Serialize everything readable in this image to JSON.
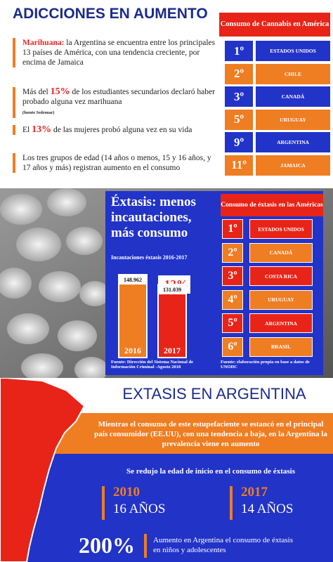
{
  "cannabis": {
    "title": "ADICCIONES EN AUMENTO",
    "paragraphs": [
      [
        {
          "text": "Marihuana:",
          "em": true
        },
        {
          "text": " la Argentina se encuentra entre los principales 13 países de América, con una tendencia creciente, por encima de Jamaica"
        }
      ],
      [
        {
          "text": "Más del "
        },
        {
          "text": "15%",
          "em": true
        },
        {
          "text": " de los estudiantes secundarios declaró haber probado alguna vez marihuana"
        }
      ],
      [
        {
          "text": "El "
        },
        {
          "text": "13%",
          "em": true
        },
        {
          "text": " de las mujeres probó alguna vez en su vida"
        }
      ],
      [
        {
          "text": "Los tres grupos de edad (14 años o menos, 15 y 16 años, y 17 años y más) registran aumento en el consumo"
        }
      ]
    ],
    "note": "(fuente Sedronar)",
    "ranking": {
      "header": "Consumo de Cannabis en América",
      "rows": [
        {
          "rank": "1º",
          "country": "ESTADOS UNIDOS"
        },
        {
          "rank": "2º",
          "country": "CHILE"
        },
        {
          "rank": "3º",
          "country": "CANADÁ"
        },
        {
          "rank": "5º",
          "country": "URUGUAY"
        },
        {
          "rank": "9º",
          "country": "ARGENTINA"
        },
        {
          "rank": "11º",
          "country": "JAMAICA"
        }
      ]
    }
  },
  "ecstasy": {
    "title": "Éxtasis: menos incautaciones, más consumo",
    "seizures": {
      "title": "Incautaciones éxtasis 2016-2017",
      "bars": [
        {
          "year": "2016",
          "value": 148962,
          "value_label": "148.962"
        },
        {
          "year": "2017",
          "value": 131039,
          "value_label": "131.039"
        }
      ],
      "change": "-12%",
      "source": "Fuente: Dirección del Sistema Nacional de Información Criminal -Agosto 2018"
    },
    "ranking": {
      "header": "Consumo de éxtasis en las Américas",
      "rows": [
        {
          "rank": "1º",
          "country": "ESTADOS UNIDOS"
        },
        {
          "rank": "2º",
          "country": "CANADÁ"
        },
        {
          "rank": "3º",
          "country": "COSTA RICA"
        },
        {
          "rank": "4º",
          "country": "URUGUAY"
        },
        {
          "rank": "5º",
          "country": "ARGENTINA"
        },
        {
          "rank": "6º",
          "country": "BRASIL"
        }
      ],
      "source": "Fuente: elaboración propia en base a datos de UNODC"
    }
  },
  "argentina": {
    "title": "EXTASIS EN ARGENTINA",
    "intro": "Mientras el consumo de este estupefaciente se estancó en el principal país consumidor (EE.UU), con una tendencia a baja, en la Argentina la prevalencia viene en aumento",
    "age_heading": "Se redujo la edad de inicio en el consumo de éxtasis",
    "ages": [
      {
        "year": "2010",
        "age": "16 AÑOS"
      },
      {
        "year": "2017",
        "age": "14 AÑOS"
      }
    ],
    "increase": "200%",
    "increase_text": "Aumento en Argentina el consumo de éxtasis en niños y adolescentes"
  }
}
